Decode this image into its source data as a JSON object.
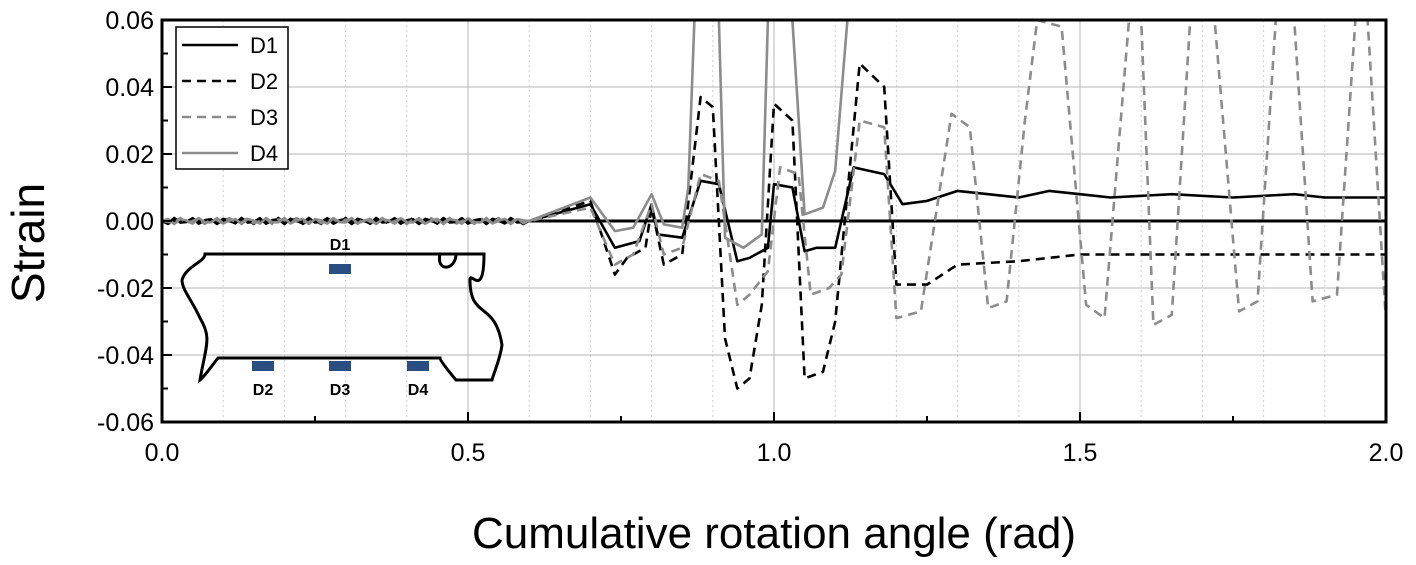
{
  "chart_data": {
    "type": "line",
    "xlabel": "Cumulative rotation angle (rad)",
    "ylabel": "Strain",
    "xlim": [
      0.0,
      2.0
    ],
    "ylim": [
      -0.06,
      0.06
    ],
    "xticks": [
      "0.0",
      "0.5",
      "1.0",
      "1.5",
      "2.0"
    ],
    "yticks": [
      "-0.06",
      "-0.04",
      "-0.02",
      "0.00",
      "0.02",
      "0.04",
      "0.06"
    ],
    "grid": true,
    "legend_position": "top-left",
    "series": [
      {
        "name": "D1",
        "color": "#000000",
        "dash": "solid",
        "points": [
          [
            0.0,
            0.0
          ],
          [
            0.6,
            0.0
          ],
          [
            0.7,
            0.005
          ],
          [
            0.74,
            -0.008
          ],
          [
            0.78,
            -0.006
          ],
          [
            0.8,
            0.005
          ],
          [
            0.81,
            -0.004
          ],
          [
            0.85,
            -0.005
          ],
          [
            0.88,
            0.012
          ],
          [
            0.91,
            0.011
          ],
          [
            0.94,
            -0.012
          ],
          [
            0.96,
            -0.011
          ],
          [
            0.99,
            -0.008
          ],
          [
            1.0,
            0.011
          ],
          [
            1.03,
            0.01
          ],
          [
            1.05,
            -0.009
          ],
          [
            1.07,
            -0.008
          ],
          [
            1.1,
            -0.008
          ],
          [
            1.13,
            0.016
          ],
          [
            1.18,
            0.014
          ],
          [
            1.21,
            0.005
          ],
          [
            1.25,
            0.006
          ],
          [
            1.3,
            0.009
          ],
          [
            1.35,
            0.008
          ],
          [
            1.4,
            0.007
          ],
          [
            1.45,
            0.009
          ],
          [
            1.5,
            0.008
          ],
          [
            1.55,
            0.007
          ],
          [
            1.65,
            0.008
          ],
          [
            1.75,
            0.007
          ],
          [
            1.85,
            0.008
          ],
          [
            1.9,
            0.007
          ],
          [
            2.0,
            0.007
          ]
        ]
      },
      {
        "name": "D2",
        "color": "#000000",
        "dash": "dashed",
        "points": [
          [
            0.0,
            0.0
          ],
          [
            0.6,
            0.0
          ],
          [
            0.7,
            0.006
          ],
          [
            0.74,
            -0.016
          ],
          [
            0.76,
            -0.011
          ],
          [
            0.79,
            -0.008
          ],
          [
            0.8,
            0.004
          ],
          [
            0.82,
            -0.013
          ],
          [
            0.85,
            -0.01
          ],
          [
            0.88,
            0.037
          ],
          [
            0.9,
            0.034
          ],
          [
            0.92,
            -0.035
          ],
          [
            0.94,
            -0.05
          ],
          [
            0.96,
            -0.047
          ],
          [
            0.98,
            -0.025
          ],
          [
            1.0,
            0.035
          ],
          [
            1.03,
            0.03
          ],
          [
            1.05,
            -0.047
          ],
          [
            1.08,
            -0.045
          ],
          [
            1.1,
            -0.03
          ],
          [
            1.14,
            0.047
          ],
          [
            1.18,
            0.04
          ],
          [
            1.2,
            -0.019
          ],
          [
            1.25,
            -0.019
          ],
          [
            1.3,
            -0.013
          ],
          [
            1.4,
            -0.012
          ],
          [
            1.5,
            -0.01
          ],
          [
            1.6,
            -0.01
          ],
          [
            1.8,
            -0.01
          ],
          [
            2.0,
            -0.01
          ]
        ]
      },
      {
        "name": "D3",
        "color": "#8c8c8c",
        "dash": "dashed",
        "points": [
          [
            0.0,
            0.0
          ],
          [
            0.6,
            0.0
          ],
          [
            0.7,
            0.004
          ],
          [
            0.74,
            -0.013
          ],
          [
            0.77,
            -0.01
          ],
          [
            0.8,
            0.005
          ],
          [
            0.82,
            -0.01
          ],
          [
            0.85,
            -0.008
          ],
          [
            0.88,
            0.014
          ],
          [
            0.91,
            0.012
          ],
          [
            0.94,
            -0.025
          ],
          [
            0.96,
            -0.022
          ],
          [
            0.99,
            -0.015
          ],
          [
            1.01,
            0.016
          ],
          [
            1.04,
            0.014
          ],
          [
            1.06,
            -0.022
          ],
          [
            1.09,
            -0.02
          ],
          [
            1.11,
            -0.016
          ],
          [
            1.14,
            0.03
          ],
          [
            1.18,
            0.028
          ],
          [
            1.2,
            -0.029
          ],
          [
            1.24,
            -0.027
          ],
          [
            1.29,
            0.032
          ],
          [
            1.32,
            0.028
          ],
          [
            1.35,
            -0.026
          ],
          [
            1.38,
            -0.024
          ],
          [
            1.41,
            0.03
          ],
          [
            1.43,
            0.06
          ],
          [
            1.47,
            0.058
          ],
          [
            1.51,
            -0.025
          ],
          [
            1.54,
            -0.029
          ],
          [
            1.58,
            0.06
          ],
          [
            1.6,
            0.06
          ],
          [
            1.62,
            -0.031
          ],
          [
            1.65,
            -0.028
          ],
          [
            1.68,
            0.06
          ],
          [
            1.72,
            0.06
          ],
          [
            1.76,
            -0.027
          ],
          [
            1.79,
            -0.024
          ],
          [
            1.82,
            0.06
          ],
          [
            1.85,
            0.06
          ],
          [
            1.88,
            -0.024
          ],
          [
            1.92,
            -0.022
          ],
          [
            1.95,
            0.06
          ],
          [
            1.97,
            0.06
          ],
          [
            2.0,
            -0.03
          ]
        ]
      },
      {
        "name": "D4",
        "color": "#8c8c8c",
        "dash": "solid",
        "points": [
          [
            0.0,
            0.0
          ],
          [
            0.6,
            0.0
          ],
          [
            0.7,
            0.007
          ],
          [
            0.74,
            -0.003
          ],
          [
            0.77,
            -0.002
          ],
          [
            0.8,
            0.008
          ],
          [
            0.82,
            -0.001
          ],
          [
            0.85,
            -0.002
          ],
          [
            0.86,
            0.01
          ],
          [
            0.87,
            0.06
          ],
          [
            0.9,
            0.06
          ],
          [
            0.91,
            0.06
          ],
          [
            0.92,
            -0.005
          ],
          [
            0.95,
            -0.008
          ],
          [
            0.98,
            -0.004
          ],
          [
            0.99,
            0.06
          ],
          [
            1.0,
            0.06
          ],
          [
            1.03,
            0.06
          ],
          [
            1.05,
            0.002
          ],
          [
            1.08,
            0.004
          ],
          [
            1.1,
            0.015
          ],
          [
            1.12,
            0.06
          ],
          [
            1.13,
            0.06
          ]
        ]
      }
    ],
    "inset": {
      "labels": [
        "D1",
        "D2",
        "D3",
        "D4"
      ],
      "sensor_color": "#2a4e82"
    }
  }
}
